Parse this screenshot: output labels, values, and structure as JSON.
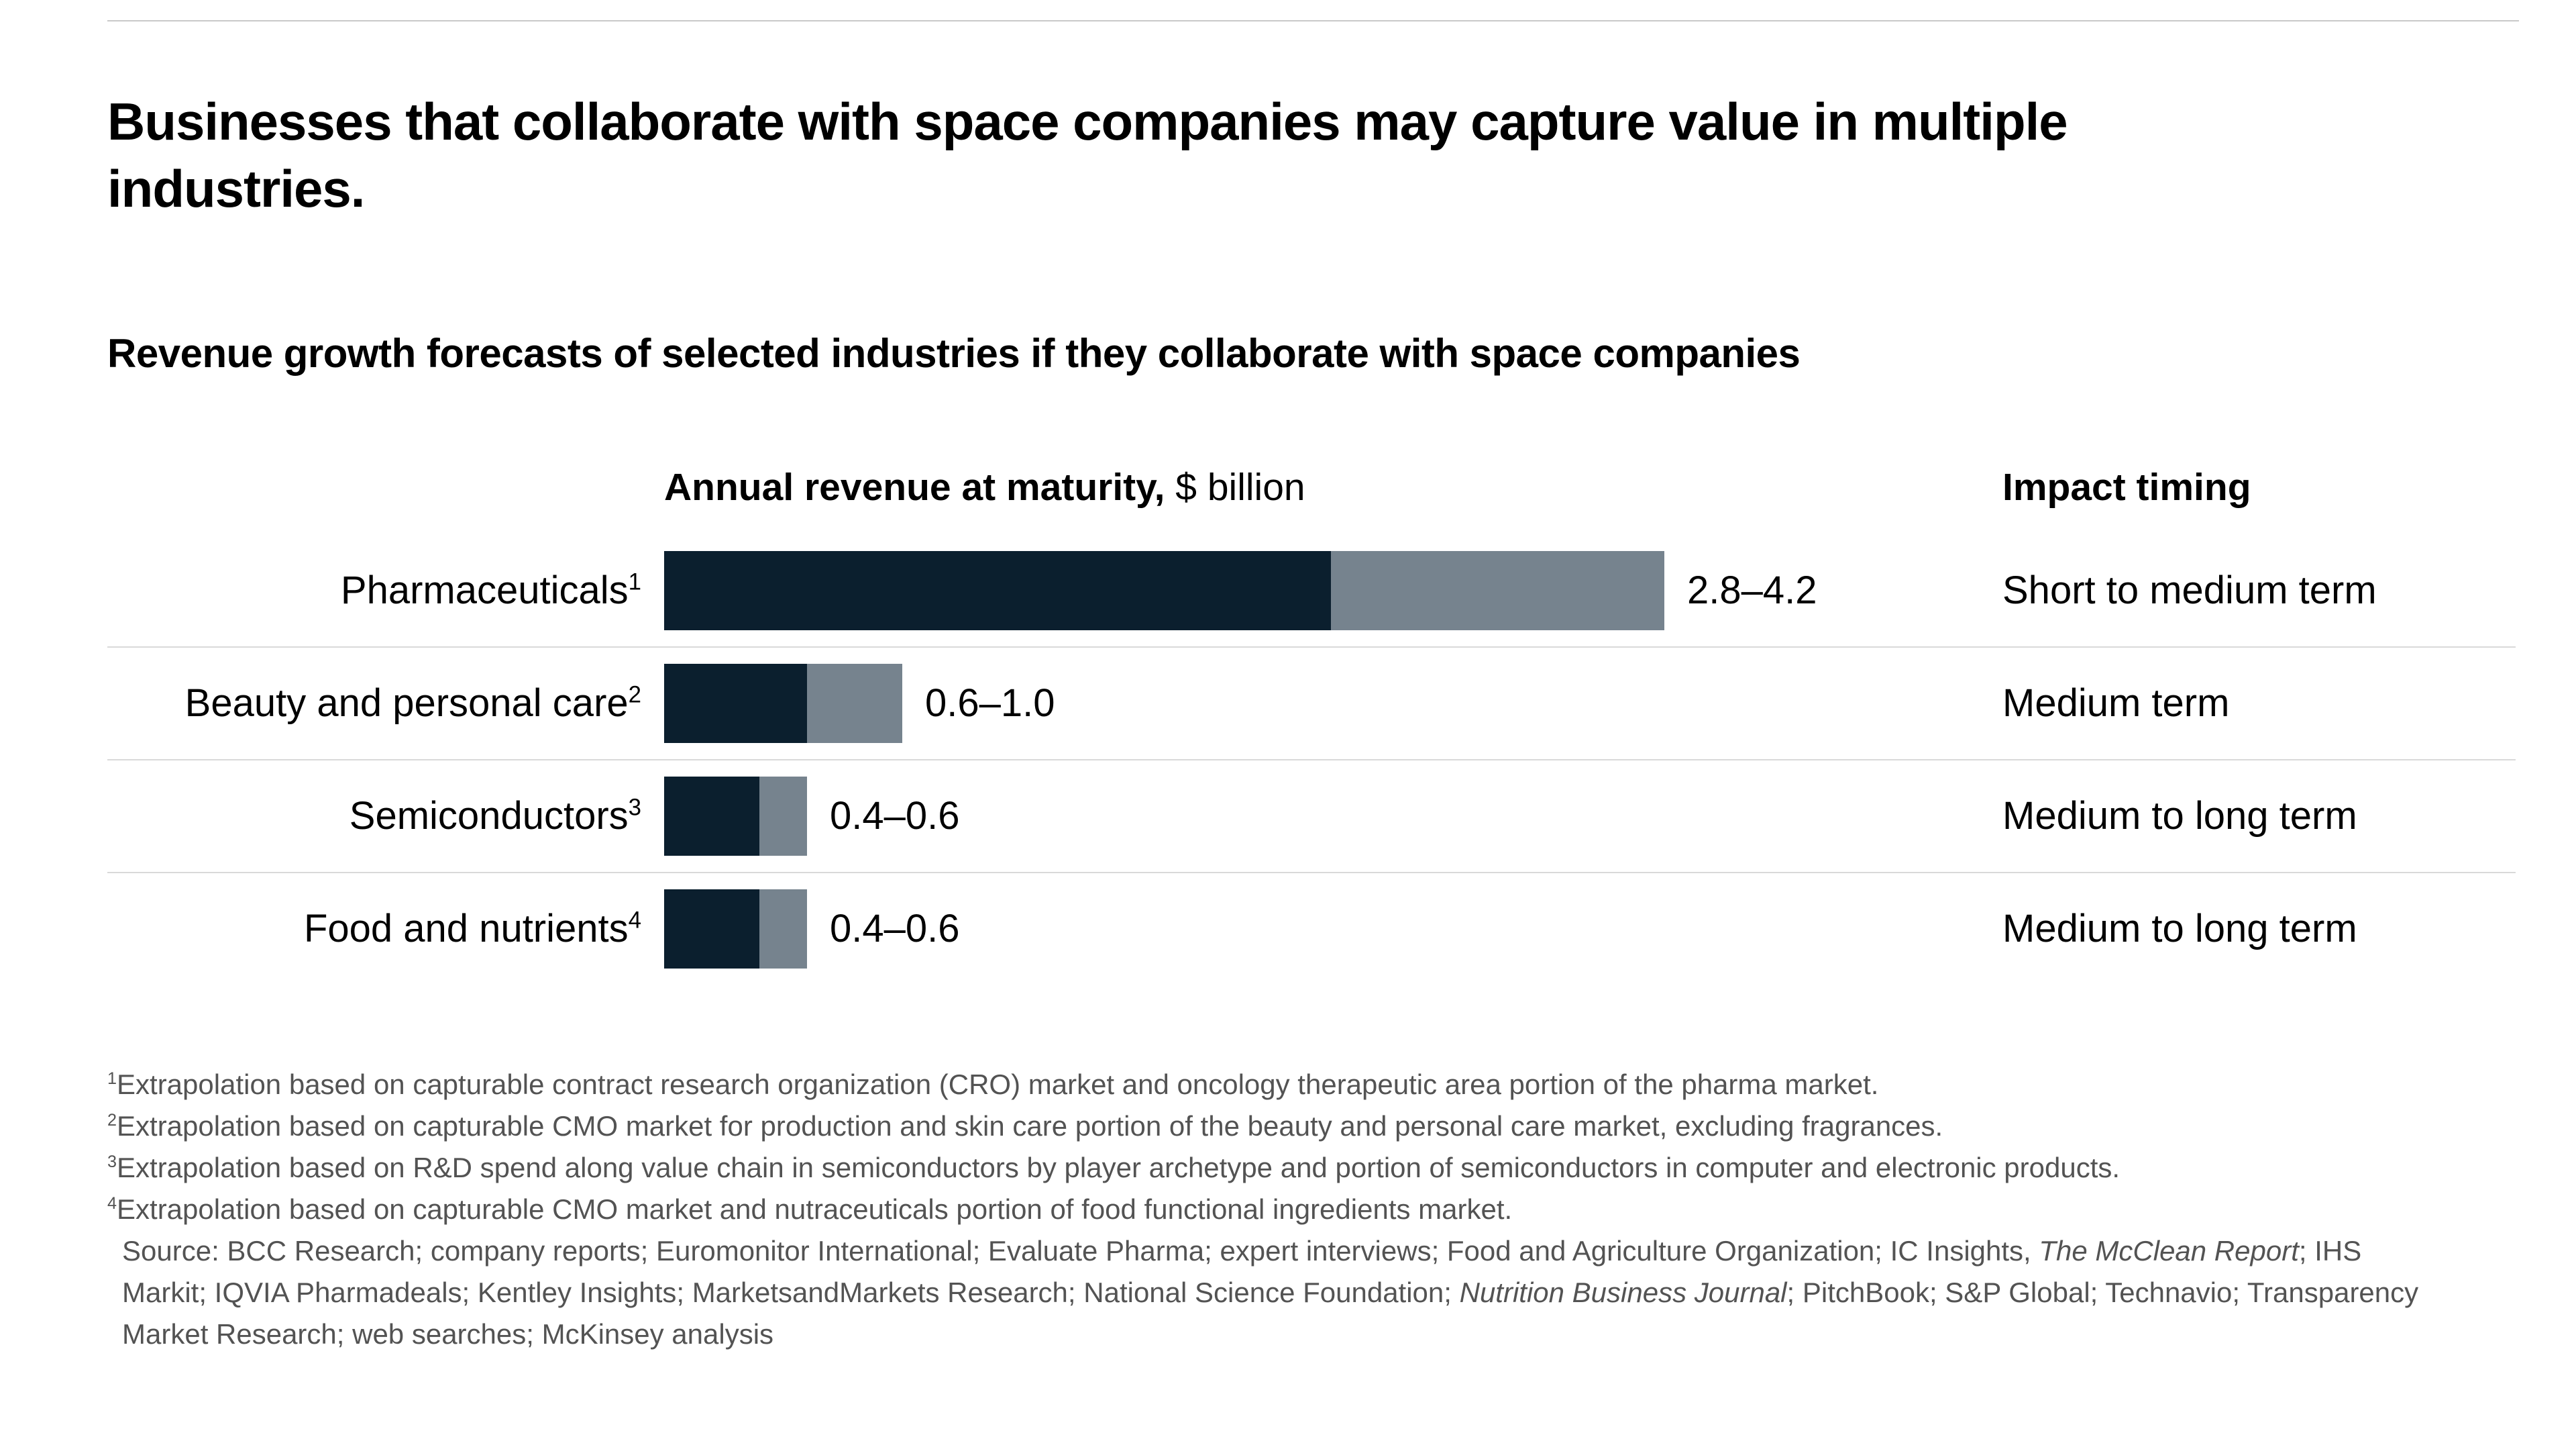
{
  "page": {
    "title": "Businesses that collaborate with space companies may capture value in multiple industries.",
    "subtitle": "Revenue growth forecasts of selected industries if they collaborate with space companies"
  },
  "chart": {
    "value_header_bold": "Annual revenue at maturity,",
    "value_header_unit": " $ billion",
    "timing_header": "Impact timing"
  },
  "chart_data": {
    "type": "bar",
    "title": "Revenue growth forecasts of selected industries if they collaborate with space companies",
    "value_axis_label": "Annual revenue at maturity, $ billion",
    "unit": "$ billion",
    "orientation": "horizontal",
    "xlim": [
      0,
      4.2
    ],
    "colors": {
      "low_bar": "#0b1f2e",
      "high_bar": "#76838e"
    },
    "rows": [
      {
        "category": "Pharmaceuticals",
        "footnote_ref": "1",
        "low": 2.8,
        "high": 4.2,
        "range_label": "2.8–4.2",
        "impact_timing": "Short to medium term"
      },
      {
        "category": "Beauty and personal care",
        "footnote_ref": "2",
        "low": 0.6,
        "high": 1.0,
        "range_label": "0.6–1.0",
        "impact_timing": "Medium term"
      },
      {
        "category": "Semiconductors",
        "footnote_ref": "3",
        "low": 0.4,
        "high": 0.6,
        "range_label": "0.4–0.6",
        "impact_timing": "Medium to long term"
      },
      {
        "category": "Food and nutrients",
        "footnote_ref": "4",
        "low": 0.4,
        "high": 0.6,
        "range_label": "0.4–0.6",
        "impact_timing": "Medium to long term"
      }
    ]
  },
  "footnotes": {
    "items": [
      {
        "sup": "1",
        "text": "Extrapolation based on capturable contract research organization (CRO) market and oncology therapeutic area portion of the pharma market."
      },
      {
        "sup": "2",
        "text": "Extrapolation based on capturable CMO market for production and skin care portion of the beauty and personal care market, excluding fragrances."
      },
      {
        "sup": "3",
        "text": "Extrapolation based on R&D spend along value chain in semiconductors by player archetype and portion of semiconductors in computer and electronic products."
      },
      {
        "sup": "4",
        "text": "Extrapolation based on capturable CMO market and nutraceuticals portion of food functional ingredients market."
      }
    ],
    "source_segments": [
      {
        "text": "Source: BCC Research; company reports; Euromonitor International; Evaluate Pharma; expert interviews; Food and Agriculture Organization; IC Insights, "
      },
      {
        "text": "The McClean Report"
      },
      {
        "text": "; IHS Markit; IQVIA Pharmadeals; Kentley Insights; MarketsandMarkets Research; National Science Foundation; "
      },
      {
        "text": "Nutrition Business Journal"
      },
      {
        "text": "; PitchBook; S&P Global; Technavio; Transparency Market Research; web searches; McKinsey analysis"
      }
    ]
  }
}
